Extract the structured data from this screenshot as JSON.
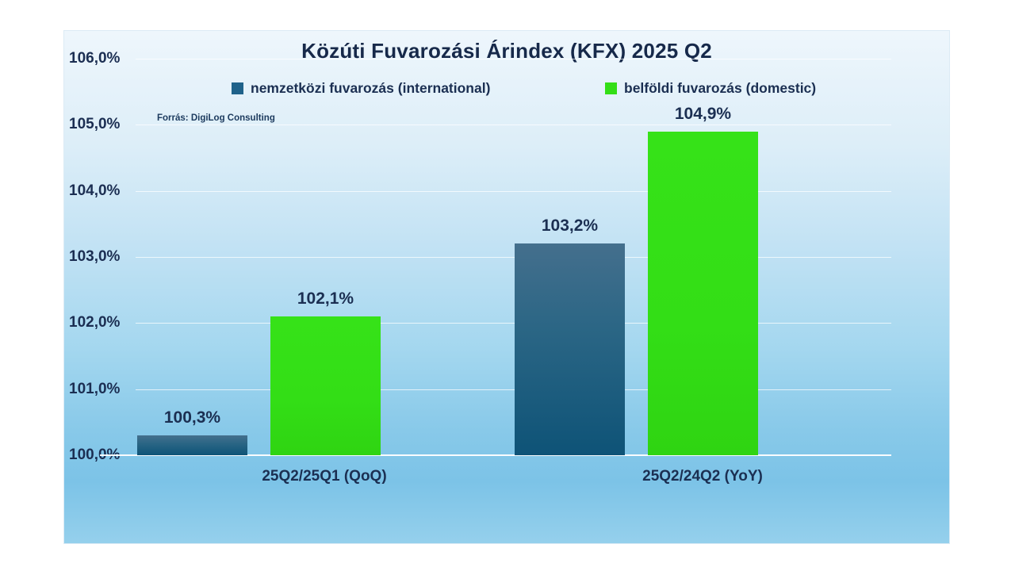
{
  "chart_data": {
    "type": "bar",
    "title": "Közúti Fuvarozási Árindex (KFX) 2025 Q2",
    "source": "Forrás: DigiLog Consulting",
    "categories": [
      "25Q2/25Q1 (QoQ)",
      "25Q2/24Q2 (YoY)"
    ],
    "series": [
      {
        "name": "nemzetközi fuvarozás (international)",
        "color": "#1f628a",
        "values": [
          100.3,
          103.2
        ],
        "labels": [
          "100,3%",
          "103,2%"
        ]
      },
      {
        "name": "belföldi fuvarozás (domestic)",
        "color": "#33de16",
        "values": [
          102.1,
          104.9
        ],
        "labels": [
          "102,1%",
          "104,9%"
        ]
      }
    ],
    "ylabel": "",
    "xlabel": "",
    "ylim": [
      100,
      106
    ],
    "ytick_step": 1,
    "ytick_labels": [
      "100,0%",
      "101,0%",
      "102,0%",
      "103,0%",
      "104,0%",
      "105,0%",
      "106,0%"
    ],
    "grid": true,
    "legend_position": "top",
    "background": {
      "top": "#eef6fc",
      "bottom": "#7cc3e7"
    }
  }
}
